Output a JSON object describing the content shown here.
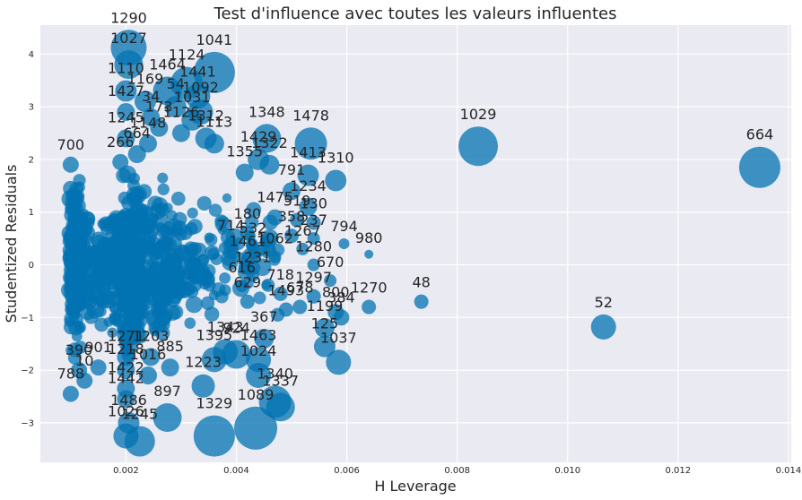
{
  "chart_data": {
    "type": "scatter",
    "title": "Test d'influence avec toutes les valeurs influentes",
    "xlabel": "H Leverage",
    "ylabel": "Studentized Residuals",
    "xlim": [
      0.00045,
      0.01405
    ],
    "ylim": [
      -3.75,
      4.55
    ],
    "x_ticks": [
      0.002,
      0.004,
      0.006,
      0.008,
      0.01,
      0.012,
      0.014
    ],
    "x_tick_labels": [
      "0.002",
      "0.004",
      "0.006",
      "0.008",
      "0.010",
      "0.012",
      "0.014"
    ],
    "y_ticks": [
      -3,
      -2,
      -1,
      0,
      1,
      2,
      3,
      4
    ],
    "y_tick_labels": [
      "−3",
      "−2",
      "−1",
      "0",
      "1",
      "2",
      "3",
      "4"
    ],
    "grid": true,
    "point_color": "#0173b2",
    "points": [
      {
        "x": 0.00205,
        "y": 4.12,
        "s": 20,
        "label": "1290"
      },
      {
        "x": 0.00205,
        "y": 3.8,
        "s": 16,
        "label": "1027"
      },
      {
        "x": 0.0036,
        "y": 3.65,
        "s": 23,
        "label": "1041"
      },
      {
        "x": 0.0031,
        "y": 3.45,
        "s": 18,
        "label": "1124"
      },
      {
        "x": 0.00275,
        "y": 3.3,
        "s": 16,
        "label": "1464"
      },
      {
        "x": 0.0033,
        "y": 3.2,
        "s": 14,
        "label": "1441"
      },
      {
        "x": 0.002,
        "y": 3.3,
        "s": 12,
        "label": "1110"
      },
      {
        "x": 0.00235,
        "y": 3.1,
        "s": 12,
        "label": "1169"
      },
      {
        "x": 0.0029,
        "y": 3.0,
        "s": 12,
        "label": "54"
      },
      {
        "x": 0.00335,
        "y": 2.9,
        "s": 14,
        "label": "1092"
      },
      {
        "x": 0.002,
        "y": 2.9,
        "s": 10,
        "label": "1427"
      },
      {
        "x": 0.00245,
        "y": 2.8,
        "s": 10,
        "label": "34"
      },
      {
        "x": 0.0032,
        "y": 2.75,
        "s": 12,
        "label": "1031"
      },
      {
        "x": 0.0026,
        "y": 2.6,
        "s": 10,
        "label": "173"
      },
      {
        "x": 0.00345,
        "y": 2.4,
        "s": 12,
        "label": "1312"
      },
      {
        "x": 0.0036,
        "y": 2.3,
        "s": 11,
        "label": "1113"
      },
      {
        "x": 0.00455,
        "y": 2.4,
        "s": 16,
        "label": "1348"
      },
      {
        "x": 0.00535,
        "y": 2.3,
        "s": 18,
        "label": "1478"
      },
      {
        "x": 0.00838,
        "y": 2.25,
        "s": 22,
        "label": "1029"
      },
      {
        "x": 0.01348,
        "y": 1.85,
        "s": 23,
        "label": "664"
      },
      {
        "x": 0.001,
        "y": 1.9,
        "s": 9,
        "label": "700"
      },
      {
        "x": 0.0019,
        "y": 1.95,
        "s": 9,
        "label": "266"
      },
      {
        "x": 0.0044,
        "y": 2.0,
        "s": 12,
        "label": "1429"
      },
      {
        "x": 0.0046,
        "y": 1.9,
        "s": 11,
        "label": "1322"
      },
      {
        "x": 0.00415,
        "y": 1.75,
        "s": 10,
        "label": "1355"
      },
      {
        "x": 0.0053,
        "y": 1.7,
        "s": 12,
        "label": "1413"
      },
      {
        "x": 0.0058,
        "y": 1.6,
        "s": 12,
        "label": "1310"
      },
      {
        "x": 0.005,
        "y": 1.4,
        "s": 10,
        "label": "791"
      },
      {
        "x": 0.0053,
        "y": 1.1,
        "s": 10,
        "label": "1234"
      },
      {
        "x": 0.0047,
        "y": 0.9,
        "s": 9,
        "label": "1475"
      },
      {
        "x": 0.0051,
        "y": 0.85,
        "s": 8,
        "label": "519"
      },
      {
        "x": 0.0054,
        "y": 0.8,
        "s": 8,
        "label": "130"
      },
      {
        "x": 0.0042,
        "y": 0.6,
        "s": 8,
        "label": "180"
      },
      {
        "x": 0.005,
        "y": 0.55,
        "s": 8,
        "label": "358"
      },
      {
        "x": 0.0054,
        "y": 0.5,
        "s": 7,
        "label": "237"
      },
      {
        "x": 0.0039,
        "y": 0.4,
        "s": 7,
        "label": "714"
      },
      {
        "x": 0.0043,
        "y": 0.35,
        "s": 7,
        "label": "532"
      },
      {
        "x": 0.0052,
        "y": 0.3,
        "s": 7,
        "label": "1267"
      },
      {
        "x": 0.00595,
        "y": 0.4,
        "s": 6,
        "label": "794"
      },
      {
        "x": 0.0064,
        "y": 0.2,
        "s": 5,
        "label": "980"
      },
      {
        "x": 0.0042,
        "y": 0.1,
        "s": 7,
        "label": "1461"
      },
      {
        "x": 0.0047,
        "y": 0.15,
        "s": 7,
        "label": "1062"
      },
      {
        "x": 0.0054,
        "y": 0.0,
        "s": 7,
        "label": "1280"
      },
      {
        "x": 0.0057,
        "y": -0.3,
        "s": 7,
        "label": "670"
      },
      {
        "x": 0.0043,
        "y": -0.2,
        "s": 7,
        "label": "1231"
      },
      {
        "x": 0.0041,
        "y": -0.4,
        "s": 7,
        "label": "616"
      },
      {
        "x": 0.0048,
        "y": -0.55,
        "s": 8,
        "label": "718"
      },
      {
        "x": 0.0054,
        "y": -0.6,
        "s": 8,
        "label": "1297"
      },
      {
        "x": 0.0042,
        "y": -0.7,
        "s": 8,
        "label": "629"
      },
      {
        "x": 0.0049,
        "y": -0.85,
        "s": 8,
        "label": "1493"
      },
      {
        "x": 0.00515,
        "y": -0.8,
        "s": 8,
        "label": "678"
      },
      {
        "x": 0.0058,
        "y": -0.9,
        "s": 9,
        "label": "800"
      },
      {
        "x": 0.0059,
        "y": -1.0,
        "s": 9,
        "label": "384"
      },
      {
        "x": 0.0064,
        "y": -0.8,
        "s": 8,
        "label": "1270"
      },
      {
        "x": 0.00735,
        "y": -0.7,
        "s": 8,
        "label": "48"
      },
      {
        "x": 0.01065,
        "y": -1.18,
        "s": 14,
        "label": "52"
      },
      {
        "x": 0.0045,
        "y": -1.4,
        "s": 11,
        "label": "367"
      },
      {
        "x": 0.0056,
        "y": -1.2,
        "s": 11,
        "label": "1199"
      },
      {
        "x": 0.0056,
        "y": -1.55,
        "s": 12,
        "label": "125"
      },
      {
        "x": 0.00585,
        "y": -1.85,
        "s": 14,
        "label": "1037"
      },
      {
        "x": 0.004,
        "y": -1.7,
        "s": 16,
        "label": "924"
      },
      {
        "x": 0.0038,
        "y": -1.65,
        "s": 14,
        "label": "1343"
      },
      {
        "x": 0.0036,
        "y": -1.8,
        "s": 14,
        "label": "1395"
      },
      {
        "x": 0.0044,
        "y": -1.8,
        "s": 14,
        "label": "1463"
      },
      {
        "x": 0.0044,
        "y": -2.1,
        "s": 14,
        "label": "1024"
      },
      {
        "x": 0.0034,
        "y": -2.3,
        "s": 13,
        "label": "1223"
      },
      {
        "x": 0.0047,
        "y": -2.6,
        "s": 18,
        "label": "1340"
      },
      {
        "x": 0.0048,
        "y": -2.7,
        "s": 16,
        "label": "1337"
      },
      {
        "x": 0.0036,
        "y": -3.25,
        "s": 23,
        "label": "1329"
      },
      {
        "x": 0.00435,
        "y": -3.1,
        "s": 24,
        "label": "1089"
      },
      {
        "x": 0.00275,
        "y": -2.9,
        "s": 16,
        "label": "897"
      },
      {
        "x": 0.00225,
        "y": -3.35,
        "s": 17,
        "label": "1245"
      },
      {
        "x": 0.002,
        "y": -3.25,
        "s": 14,
        "label": "1026"
      },
      {
        "x": 0.00205,
        "y": -3.0,
        "s": 12,
        "label": "1486"
      },
      {
        "x": 0.00115,
        "y": -2.0,
        "s": 9,
        "label": "390"
      },
      {
        "x": 0.0015,
        "y": -1.95,
        "s": 9,
        "label": "901"
      },
      {
        "x": 0.001,
        "y": -2.45,
        "s": 9,
        "label": "788"
      },
      {
        "x": 0.00125,
        "y": -2.2,
        "s": 9,
        "label": "10"
      },
      {
        "x": 0.002,
        "y": -1.75,
        "s": 10,
        "label": "1271"
      },
      {
        "x": 0.00245,
        "y": -1.75,
        "s": 10,
        "label": "1203"
      },
      {
        "x": 0.0028,
        "y": -1.95,
        "s": 10,
        "label": "885"
      },
      {
        "x": 0.002,
        "y": -2.0,
        "s": 10,
        "label": "1218"
      },
      {
        "x": 0.0024,
        "y": -2.1,
        "s": 10,
        "label": "1016"
      },
      {
        "x": 0.002,
        "y": -2.35,
        "s": 10,
        "label": "1422"
      },
      {
        "x": 0.002,
        "y": -2.55,
        "s": 10,
        "label": "1442"
      },
      {
        "x": 0.002,
        "y": 2.4,
        "s": 10,
        "label": "1245"
      },
      {
        "x": 0.0024,
        "y": 2.3,
        "s": 10,
        "label": "1148"
      },
      {
        "x": 0.0022,
        "y": 2.1,
        "s": 10,
        "label": "664"
      },
      {
        "x": 0.003,
        "y": 2.5,
        "s": 10,
        "label": "1126"
      }
    ]
  }
}
